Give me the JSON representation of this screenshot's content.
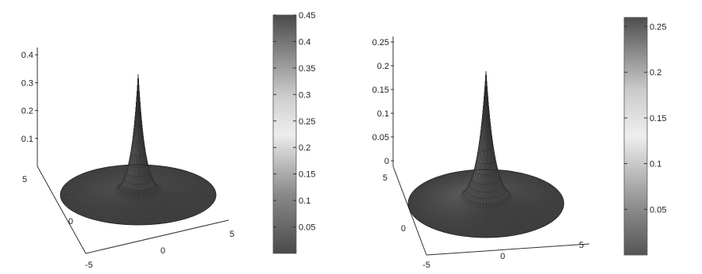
{
  "chart_data": [
    {
      "type": "surface",
      "title": "",
      "xlabel": "",
      "ylabel": "",
      "zlabel": "",
      "xlim": [
        -5,
        5
      ],
      "ylim": [
        -5,
        5
      ],
      "zlim": [
        0,
        0.45
      ],
      "x_ticks": [
        "-5",
        "0",
        "5"
      ],
      "y_ticks": [
        "5",
        "0"
      ],
      "z_ticks": [
        "0.1",
        "0.2",
        "0.3",
        "0.4"
      ],
      "peak": {
        "x": 0,
        "y": 0,
        "z": 0.45
      },
      "domain": "disk, radius 5",
      "grid": false,
      "colormap": "gray",
      "colorbar": {
        "min": 0,
        "max": 0.45,
        "ticks": [
          "0.05",
          "0.1",
          "0.15",
          "0.2",
          "0.25",
          "0.3",
          "0.35",
          "0.4",
          "0.45"
        ]
      }
    },
    {
      "type": "surface",
      "title": "",
      "xlabel": "",
      "ylabel": "",
      "zlabel": "",
      "xlim": [
        -5,
        5
      ],
      "ylim": [
        -5,
        5
      ],
      "zlim": [
        0,
        0.25
      ],
      "x_ticks": [
        "-5",
        "0",
        "5"
      ],
      "y_ticks": [
        "5",
        "0"
      ],
      "z_ticks": [
        "0",
        "0.05",
        "0.1",
        "0.15",
        "0.2",
        "0.25"
      ],
      "peak": {
        "x": 0,
        "y": 0,
        "z": 0.26
      },
      "domain": "disk, radius 5",
      "grid": false,
      "colormap": "gray",
      "colorbar": {
        "min": 0,
        "max": 0.26,
        "ticks": [
          "0.05",
          "0.1",
          "0.15",
          "0.2",
          "0.25"
        ]
      }
    }
  ]
}
